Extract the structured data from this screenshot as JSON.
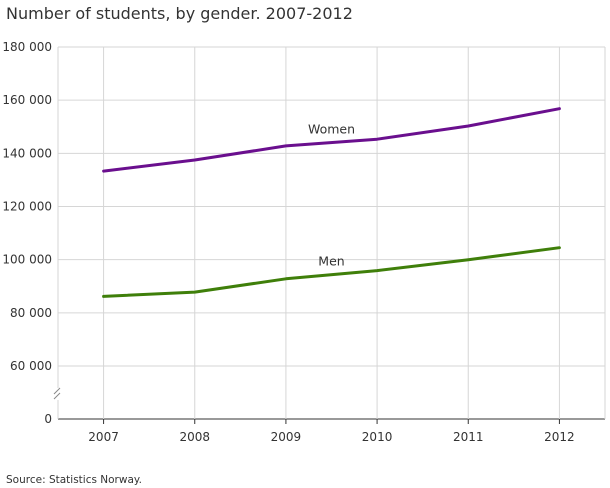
{
  "title": "Number of students, by gender. 2007-2012",
  "source": "Source: Statistics Norway.",
  "chart_data": {
    "type": "line",
    "title": "Number of students, by gender. 2007-2012",
    "xlabel": "",
    "ylabel": "",
    "x": [
      "2007",
      "2008",
      "2009",
      "2010",
      "2011",
      "2012"
    ],
    "ylim": [
      0,
      180000
    ],
    "y_axis_break": true,
    "yticks": [
      0,
      60000,
      80000,
      100000,
      120000,
      140000,
      160000,
      180000
    ],
    "ytick_labels": [
      "0",
      "60 000",
      "80 000",
      "100 000",
      "120 000",
      "140 000",
      "160 000",
      "180 000"
    ],
    "grid": true,
    "legend": "inline labels",
    "series": [
      {
        "name": "Women",
        "color": "#6a0f8e",
        "values": [
          133300,
          137500,
          142800,
          145300,
          150300,
          156800
        ]
      },
      {
        "name": "Men",
        "color": "#3f7f0a",
        "values": [
          86200,
          87800,
          92800,
          95900,
          100000,
          104500
        ]
      }
    ]
  }
}
